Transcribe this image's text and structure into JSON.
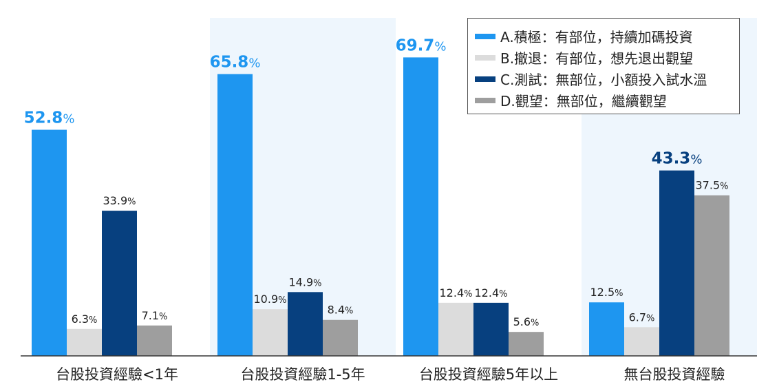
{
  "chart_data": {
    "type": "bar",
    "categories": [
      "台股投資經驗<1年",
      "台股投資經驗1-5年",
      "台股投資經驗5年以上",
      "無台股投資經驗"
    ],
    "series": [
      {
        "name": "A.積極：有部位，持續加碼投資",
        "color": "#1e96f0",
        "values": [
          52.8,
          65.8,
          69.7,
          12.5
        ]
      },
      {
        "name": "B.撤退：有部位，想先退出觀望",
        "color": "#dcdcdc",
        "values": [
          6.3,
          10.9,
          12.4,
          6.7
        ]
      },
      {
        "name": "C.測試：無部位，小額投入試水溫",
        "color": "#07407f",
        "values": [
          33.9,
          14.9,
          12.4,
          43.3
        ]
      },
      {
        "name": "D.觀望：無部位，繼續觀望",
        "color": "#9e9e9e",
        "values": [
          7.1,
          8.4,
          5.6,
          37.5
        ]
      }
    ],
    "unit": "%",
    "ylim": [
      0,
      75
    ],
    "highlighted_categories": [
      1,
      3
    ],
    "highlight_color": "#eef6fd",
    "legend_position": "top-right",
    "grid": false,
    "emphasized_labels": "largest value per group shown large and bold in series color",
    "label_color": "#222222"
  }
}
